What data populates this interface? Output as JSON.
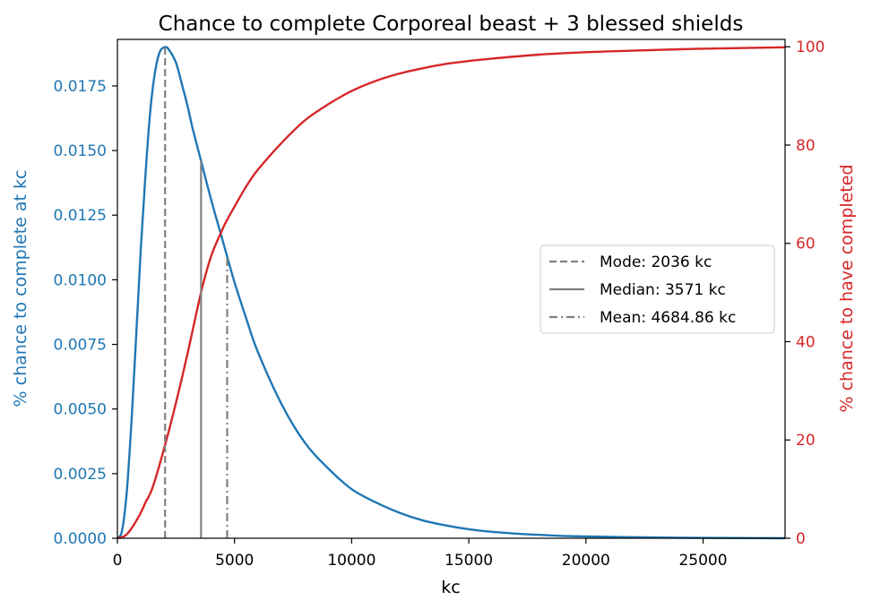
{
  "chart_data": {
    "type": "line",
    "title": "Chance to complete Corporeal beast + 3 blessed shields",
    "xlabel": "kc",
    "ylabel_left": "% chance to complete at kc",
    "ylabel_right": "% chance to have completed",
    "xlim": [
      0,
      28500
    ],
    "ylim_left": [
      0,
      0.0193
    ],
    "ylim_right": [
      0,
      101.5
    ],
    "x_ticks": [
      0,
      5000,
      10000,
      15000,
      20000,
      25000
    ],
    "y_left_ticks": [
      "0.0000",
      "0.0025",
      "0.0050",
      "0.0075",
      "0.0100",
      "0.0125",
      "0.0150",
      "0.0175"
    ],
    "y_right_ticks": [
      0,
      20,
      40,
      60,
      80,
      100
    ],
    "grid": false,
    "colors": {
      "left_axis": "#1f77b4",
      "right_axis": "#d62728",
      "marker_lines": "#808080",
      "axis": "#000000"
    },
    "series": [
      {
        "axis": "left",
        "color": "#1f77b4",
        "x": [
          0,
          200,
          400,
          600,
          800,
          1000,
          1200,
          1400,
          1600,
          1800,
          2036,
          2200,
          2500,
          2800,
          3000,
          3200,
          3571,
          4000,
          4500,
          4685,
          5000,
          5500,
          6000,
          7000,
          8000,
          9000,
          10000,
          11000,
          12000,
          13000,
          14000,
          15000,
          16000,
          17000,
          18000,
          19000,
          20000,
          22000,
          24000,
          26000,
          28500
        ],
        "y": [
          0,
          0.0003,
          0.0018,
          0.0045,
          0.0078,
          0.0112,
          0.0141,
          0.0165,
          0.018,
          0.0188,
          0.019,
          0.0189,
          0.0184,
          0.0174,
          0.0167,
          0.0159,
          0.0146,
          0.0131,
          0.0115,
          0.0109,
          0.0099,
          0.0085,
          0.0072,
          0.0052,
          0.0037,
          0.0027,
          0.0019,
          0.0014,
          0.001,
          0.0007,
          0.0005,
          0.00035,
          0.00025,
          0.00018,
          0.00013,
          9e-05,
          7e-05,
          4e-05,
          2e-05,
          1e-05,
          0
        ]
      },
      {
        "axis": "right",
        "color": "#d62728",
        "x": [
          0,
          200,
          400,
          600,
          800,
          1000,
          1200,
          1500,
          2036,
          2500,
          3000,
          3571,
          4000,
          4500,
          4685,
          5000,
          5500,
          6000,
          7000,
          8000,
          9000,
          10000,
          11000,
          12000,
          13000,
          14000,
          15000,
          16000,
          18000,
          20000,
          22000,
          24000,
          26000,
          28500
        ],
        "y": [
          0,
          0.2,
          0.8,
          2.0,
          3.5,
          5.2,
          7.3,
          10.3,
          19.0,
          27.6,
          37.7,
          50.0,
          57.4,
          63.0,
          64.8,
          67.5,
          71.6,
          75.0,
          80.4,
          85.0,
          88.3,
          91.0,
          93.0,
          94.5,
          95.6,
          96.5,
          97.1,
          97.6,
          98.4,
          98.9,
          99.2,
          99.5,
          99.7,
          99.9
        ]
      }
    ],
    "markers": [
      {
        "label": "Mode: 2036 kc",
        "x": 2036,
        "style": "dashed",
        "y_left_top": 0.019
      },
      {
        "label": "Median: 3571 kc",
        "x": 3571,
        "style": "solid",
        "y_left_top": 0.0146
      },
      {
        "label": "Mean: 4684.86 kc",
        "x": 4684.86,
        "style": "dashdot",
        "y_left_top": 0.0109
      }
    ],
    "legend_placement": "center-right"
  }
}
